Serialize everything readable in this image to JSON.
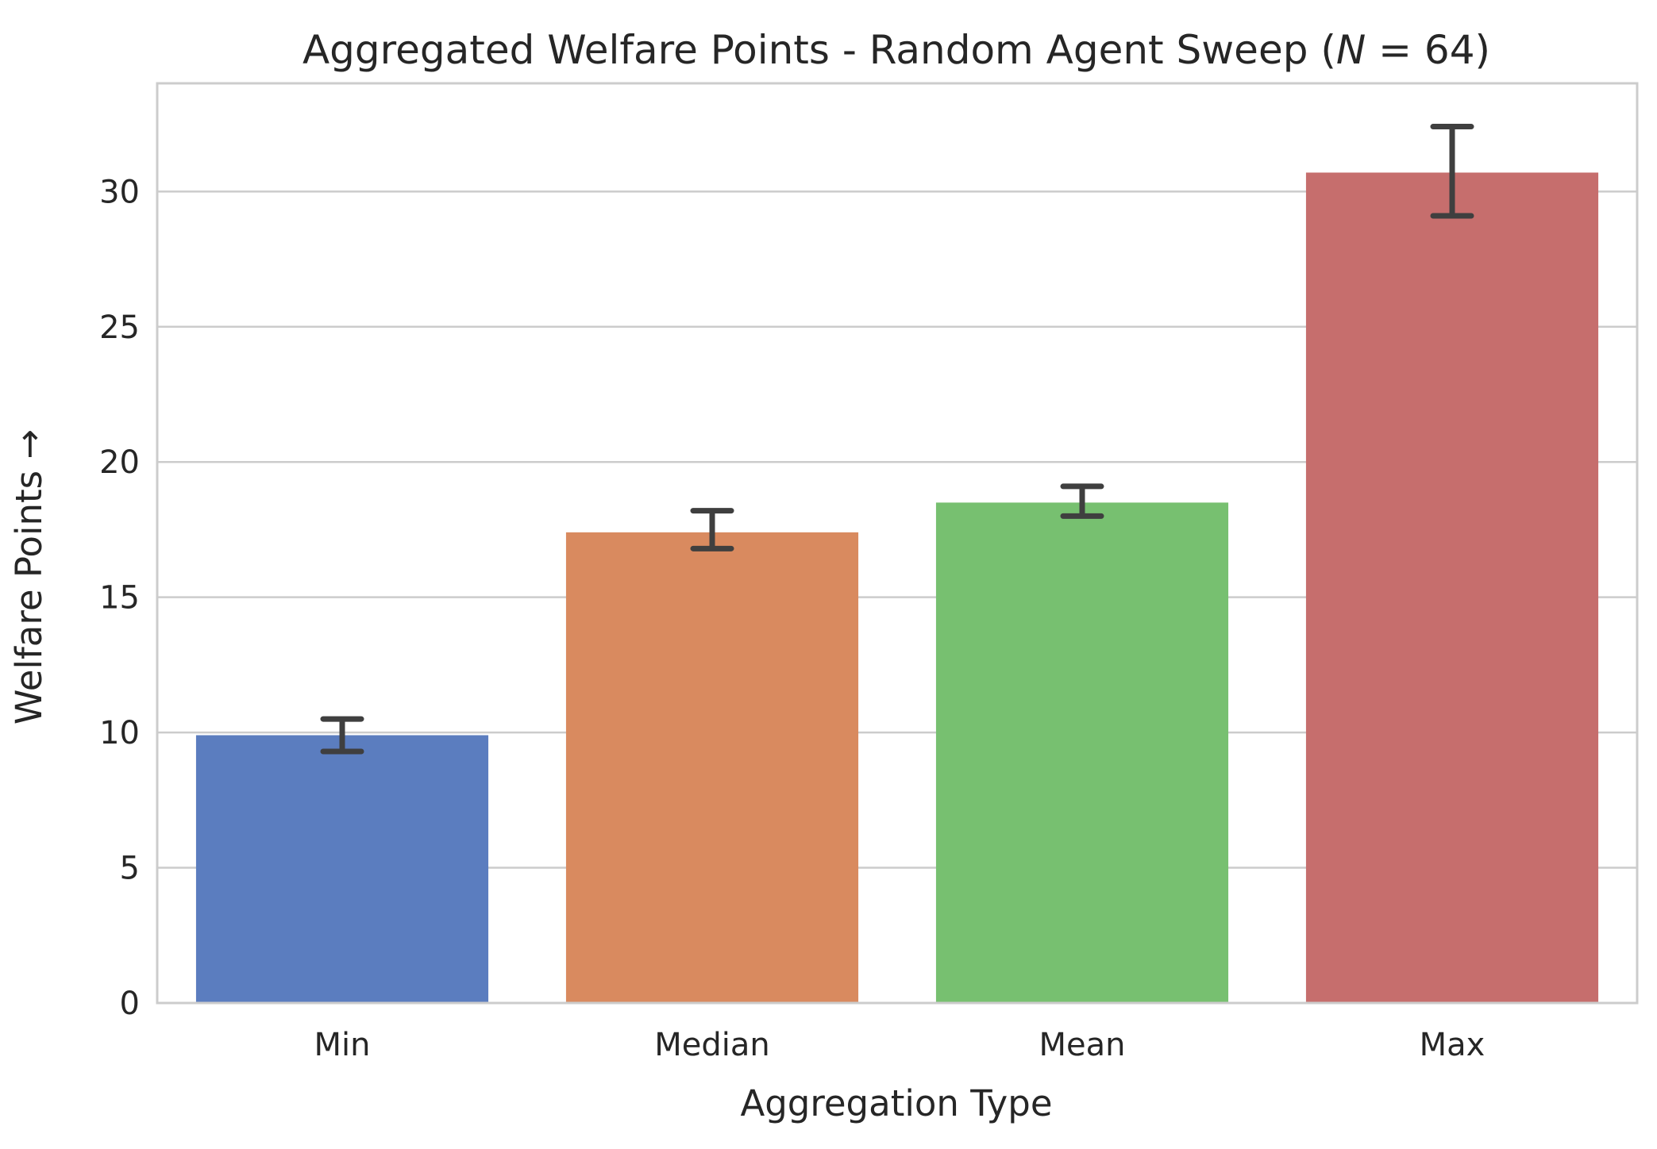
{
  "chart_data": {
    "type": "bar",
    "title_parts": {
      "prefix": "Aggregated Welfare Points - Random Agent Sweep (",
      "var": "N",
      "eq": " = 64)"
    },
    "xlabel": "Aggregation Type",
    "ylabel": "Welfare Points →",
    "categories": [
      "Min",
      "Median",
      "Mean",
      "Max"
    ],
    "values": [
      9.9,
      17.4,
      18.5,
      30.7
    ],
    "error_low": [
      9.3,
      16.8,
      18.0,
      29.1
    ],
    "error_high": [
      10.5,
      18.2,
      19.1,
      32.4
    ],
    "colors": [
      "#5b7dbf",
      "#d98a5f",
      "#77c070",
      "#c66e6d"
    ],
    "ylim": [
      0,
      34
    ],
    "yticks": [
      0,
      5,
      10,
      15,
      20,
      25,
      30
    ],
    "grid": "horizontal",
    "legend": "none"
  }
}
